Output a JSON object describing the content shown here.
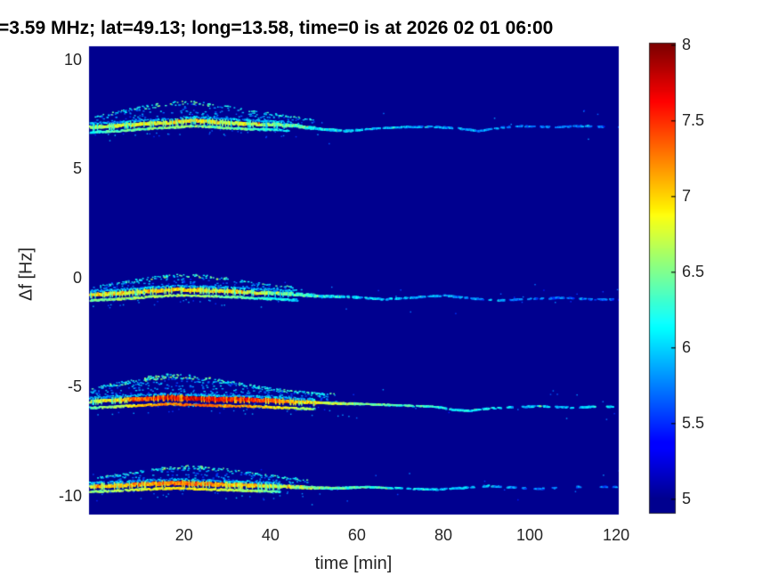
{
  "figure": {
    "title": "=3.59 MHz;  lat=49.13; long=13.58, time=0 is at 2026 02 01 06:00"
  },
  "chart_data": {
    "type": "heatmap",
    "title": "=3.59 MHz;  lat=49.13; long=13.58, time=0 is at 2026 02 01 06:00",
    "xlabel": "time [min]",
    "ylabel": "Δf [Hz]",
    "xlim": [
      -2,
      120.6
    ],
    "ylim": [
      -10.86,
      10.61
    ],
    "x_ticks": [
      20,
      40,
      60,
      80,
      100,
      120
    ],
    "y_ticks": [
      -10,
      -5,
      0,
      5,
      10
    ],
    "grid": false,
    "colormap": "jet",
    "background_value": 5,
    "colorbar": {
      "min": 5,
      "max": 8,
      "ticks": [
        5,
        5.5,
        6,
        6.5,
        7,
        7.5,
        8
      ],
      "position": "right"
    },
    "traces": [
      {
        "name": "doppler-mode-plus7Hz",
        "path": [
          [
            -2,
            6.9
          ],
          [
            4,
            6.95
          ],
          [
            10,
            7.05
          ],
          [
            16,
            7.1
          ],
          [
            22,
            7.2
          ],
          [
            28,
            7.12
          ],
          [
            34,
            7.05
          ],
          [
            40,
            7.02
          ],
          [
            46,
            6.95
          ],
          [
            52,
            6.8
          ],
          [
            57,
            6.72
          ],
          [
            63,
            6.82
          ],
          [
            70,
            6.9
          ],
          [
            77,
            6.92
          ],
          [
            83,
            6.85
          ],
          [
            88,
            6.72
          ],
          [
            93,
            6.88
          ],
          [
            98,
            6.95
          ],
          [
            105,
            6.9
          ],
          [
            112,
            6.95
          ],
          [
            120,
            6.9
          ]
        ],
        "intensity": [
          [
            -2,
            6.55
          ],
          [
            5,
            6.75
          ],
          [
            12,
            6.85
          ],
          [
            20,
            6.9
          ],
          [
            28,
            6.8
          ],
          [
            36,
            6.7
          ],
          [
            44,
            6.45
          ],
          [
            50,
            6.1
          ],
          [
            58,
            5.95
          ],
          [
            70,
            5.9
          ],
          [
            85,
            5.8
          ],
          [
            100,
            5.75
          ],
          [
            120,
            5.7
          ]
        ],
        "sparsity": [
          [
            -2,
            1
          ],
          [
            48,
            1
          ],
          [
            60,
            0.9
          ],
          [
            75,
            0.7
          ],
          [
            90,
            0.55
          ],
          [
            105,
            0.5
          ],
          [
            120,
            0.45
          ]
        ],
        "double_end": 44,
        "double_off": 0.24,
        "cloud": {
          "t_end": 52,
          "peak_t": 19,
          "peak_dhz": 1.0,
          "density": 0.5
        }
      },
      {
        "name": "doppler-mode-minus1Hz",
        "path": [
          [
            -2,
            -0.78
          ],
          [
            5,
            -0.72
          ],
          [
            12,
            -0.62
          ],
          [
            18,
            -0.55
          ],
          [
            24,
            -0.58
          ],
          [
            30,
            -0.62
          ],
          [
            36,
            -0.68
          ],
          [
            44,
            -0.75
          ],
          [
            52,
            -0.85
          ],
          [
            60,
            -0.9
          ],
          [
            66,
            -1.0
          ],
          [
            72,
            -0.92
          ],
          [
            80,
            -0.82
          ],
          [
            86,
            -0.95
          ],
          [
            92,
            -1.05
          ],
          [
            100,
            -0.98
          ],
          [
            108,
            -0.92
          ],
          [
            114,
            -1.0
          ],
          [
            120,
            -1.0
          ]
        ],
        "intensity": [
          [
            -2,
            6.85
          ],
          [
            6,
            6.9
          ],
          [
            14,
            7.0
          ],
          [
            22,
            6.95
          ],
          [
            30,
            6.85
          ],
          [
            38,
            6.65
          ],
          [
            46,
            6.35
          ],
          [
            54,
            6.05
          ],
          [
            64,
            5.95
          ],
          [
            78,
            5.85
          ],
          [
            92,
            5.75
          ],
          [
            106,
            5.65
          ],
          [
            120,
            5.6
          ]
        ],
        "sparsity": [
          [
            -2,
            1
          ],
          [
            50,
            1
          ],
          [
            62,
            0.85
          ],
          [
            76,
            0.65
          ],
          [
            90,
            0.5
          ],
          [
            105,
            0.42
          ],
          [
            120,
            0.38
          ]
        ],
        "double_end": 46,
        "double_off": 0.26,
        "cloud": {
          "t_end": 47,
          "peak_t": 20,
          "peak_dhz": 0.78,
          "density": 0.45
        }
      },
      {
        "name": "doppler-mode-minus5p8Hz",
        "path": [
          [
            -2,
            -5.68
          ],
          [
            4,
            -5.62
          ],
          [
            10,
            -5.56
          ],
          [
            16,
            -5.5
          ],
          [
            22,
            -5.54
          ],
          [
            28,
            -5.58
          ],
          [
            34,
            -5.6
          ],
          [
            40,
            -5.64
          ],
          [
            46,
            -5.7
          ],
          [
            54,
            -5.76
          ],
          [
            62,
            -5.8
          ],
          [
            70,
            -5.86
          ],
          [
            78,
            -5.92
          ],
          [
            82,
            -6.06
          ],
          [
            86,
            -6.1
          ],
          [
            90,
            -6.0
          ],
          [
            95,
            -5.94
          ],
          [
            102,
            -5.9
          ],
          [
            110,
            -5.96
          ],
          [
            116,
            -5.9
          ],
          [
            120,
            -5.93
          ]
        ],
        "intensity": [
          [
            -2,
            6.7
          ],
          [
            4,
            6.95
          ],
          [
            9,
            7.25
          ],
          [
            13,
            7.5
          ],
          [
            18,
            7.65
          ],
          [
            24,
            7.7
          ],
          [
            30,
            7.55
          ],
          [
            36,
            7.45
          ],
          [
            42,
            7.25
          ],
          [
            48,
            6.95
          ],
          [
            54,
            6.7
          ],
          [
            60,
            6.5
          ],
          [
            68,
            6.35
          ],
          [
            76,
            6.25
          ],
          [
            86,
            6.1
          ],
          [
            96,
            6.0
          ],
          [
            108,
            5.95
          ],
          [
            120,
            5.9
          ]
        ],
        "sparsity": [
          [
            -2,
            1
          ],
          [
            60,
            1
          ],
          [
            75,
            0.85
          ],
          [
            90,
            0.7
          ],
          [
            105,
            0.6
          ],
          [
            120,
            0.55
          ]
        ],
        "double_end": 50,
        "double_off": 0.3,
        "cloud": {
          "t_end": 58,
          "peak_t": 18,
          "peak_dhz": 1.15,
          "density": 0.8
        }
      },
      {
        "name": "doppler-mode-minus9p6Hz",
        "path": [
          [
            -2,
            -9.58
          ],
          [
            6,
            -9.52
          ],
          [
            12,
            -9.46
          ],
          [
            18,
            -9.42
          ],
          [
            24,
            -9.46
          ],
          [
            30,
            -9.5
          ],
          [
            38,
            -9.55
          ],
          [
            46,
            -9.6
          ],
          [
            54,
            -9.66
          ],
          [
            62,
            -9.6
          ],
          [
            70,
            -9.66
          ],
          [
            78,
            -9.72
          ],
          [
            84,
            -9.64
          ],
          [
            90,
            -9.55
          ],
          [
            96,
            -9.62
          ],
          [
            102,
            -9.68
          ],
          [
            108,
            -9.62
          ],
          [
            114,
            -9.58
          ],
          [
            120,
            -9.6
          ]
        ],
        "intensity": [
          [
            -2,
            6.9
          ],
          [
            6,
            7.0
          ],
          [
            13,
            7.2
          ],
          [
            20,
            7.3
          ],
          [
            27,
            7.15
          ],
          [
            34,
            7.0
          ],
          [
            40,
            6.8
          ],
          [
            46,
            6.6
          ],
          [
            52,
            6.45
          ],
          [
            60,
            6.3
          ],
          [
            68,
            6.15
          ],
          [
            76,
            6.0
          ],
          [
            86,
            5.95
          ],
          [
            96,
            5.8
          ],
          [
            106,
            5.65
          ],
          [
            114,
            5.6
          ],
          [
            120,
            5.7
          ]
        ],
        "sparsity": [
          [
            -2,
            1
          ],
          [
            58,
            1
          ],
          [
            72,
            0.85
          ],
          [
            86,
            0.6
          ],
          [
            96,
            0.45
          ],
          [
            106,
            0.35
          ],
          [
            114,
            0.4
          ],
          [
            120,
            0.5
          ]
        ],
        "double_end": 42,
        "double_off": 0.24,
        "cloud": {
          "t_end": 50,
          "peak_t": 22,
          "peak_dhz": 0.88,
          "density": 0.55
        }
      }
    ]
  }
}
